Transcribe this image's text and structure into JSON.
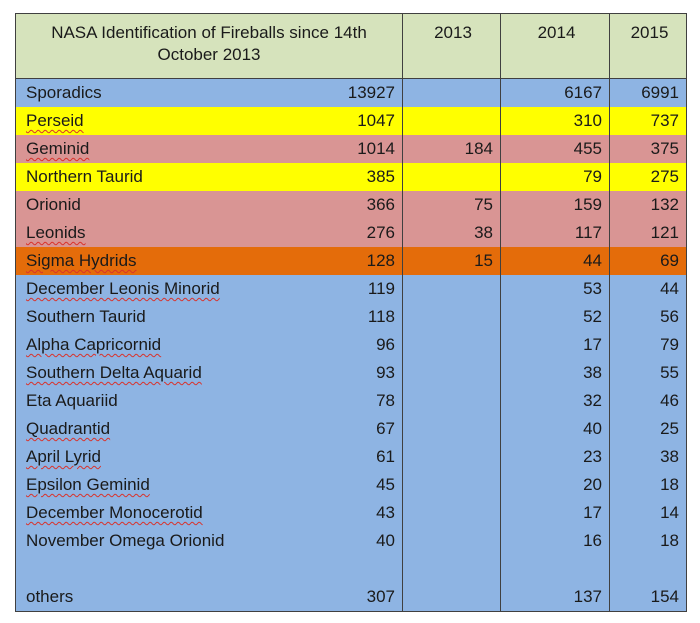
{
  "table": {
    "title": "NASA Identification of Fireballs since 14th October 2013",
    "years": [
      "2013",
      "2014",
      "2015"
    ],
    "rows": [
      {
        "name": "Sporadics",
        "total": "13927",
        "y2013": "",
        "y2014": "6167",
        "y2015": "6991",
        "bg": "#8eb4e3",
        "squiggle": false
      },
      {
        "name": "Perseid",
        "total": "1047",
        "y2013": "",
        "y2014": "310",
        "y2015": "737",
        "bg": "#ffff00",
        "squiggle": true
      },
      {
        "name": "Geminid",
        "total": "1014",
        "y2013": "184",
        "y2014": "455",
        "y2015": "375",
        "bg": "#d99594",
        "squiggle": true
      },
      {
        "name": "Northern Taurid",
        "total": "385",
        "y2013": "",
        "y2014": "79",
        "y2015": "275",
        "bg": "#ffff00",
        "squiggle": false
      },
      {
        "name": "Orionid",
        "total": "366",
        "y2013": "75",
        "y2014": "159",
        "y2015": "132",
        "bg": "#d99594",
        "squiggle": false
      },
      {
        "name": "Leonids",
        "total": "276",
        "y2013": "38",
        "y2014": "117",
        "y2015": "121",
        "bg": "#d99594",
        "squiggle": true
      },
      {
        "name": "Sigma Hydrids",
        "total": "128",
        "y2013": "15",
        "y2014": "44",
        "y2015": "69",
        "bg": "#e46c0a",
        "squiggle": true
      },
      {
        "name": "December Leonis Minorid",
        "total": "119",
        "y2013": "",
        "y2014": "53",
        "y2015": "44",
        "bg": "#8eb4e3",
        "squiggle": true
      },
      {
        "name": "Southern Taurid",
        "total": "118",
        "y2013": "",
        "y2014": "52",
        "y2015": "56",
        "bg": "#8eb4e3",
        "squiggle": false
      },
      {
        "name": "Alpha Capricornid",
        "total": "96",
        "y2013": "",
        "y2014": "17",
        "y2015": "79",
        "bg": "#8eb4e3",
        "squiggle": true
      },
      {
        "name": "Southern Delta Aquarid",
        "total": "93",
        "y2013": "",
        "y2014": "38",
        "y2015": "55",
        "bg": "#8eb4e3",
        "squiggle": true
      },
      {
        "name": "Eta Aquariid",
        "total": "78",
        "y2013": "",
        "y2014": "32",
        "y2015": "46",
        "bg": "#8eb4e3",
        "squiggle": false
      },
      {
        "name": "Quadrantid",
        "total": "67",
        "y2013": "",
        "y2014": "40",
        "y2015": "25",
        "bg": "#8eb4e3",
        "squiggle": true
      },
      {
        "name": "April Lyrid",
        "total": "61",
        "y2013": "",
        "y2014": "23",
        "y2015": "38",
        "bg": "#8eb4e3",
        "squiggle": true
      },
      {
        "name": "Epsilon Geminid",
        "total": "45",
        "y2013": "",
        "y2014": "20",
        "y2015": "18",
        "bg": "#8eb4e3",
        "squiggle": true
      },
      {
        "name": "December Monocerotid",
        "total": "43",
        "y2013": "",
        "y2014": "17",
        "y2015": "14",
        "bg": "#8eb4e3",
        "squiggle": true
      },
      {
        "name": "November Omega Orionid",
        "total": "40",
        "y2013": "",
        "y2014": "16",
        "y2015": "18",
        "bg": "#8eb4e3",
        "squiggle": false
      },
      {
        "name": "",
        "total": "",
        "y2013": "",
        "y2014": "",
        "y2015": "",
        "bg": "#8eb4e3",
        "squiggle": false
      },
      {
        "name": "others",
        "total": "307",
        "y2013": "",
        "y2014": "137",
        "y2015": "154",
        "bg": "#8eb4e3",
        "squiggle": false
      }
    ],
    "colors": {
      "header_bg": "#d6e3bc",
      "sporadic_blue": "#8eb4e3",
      "yellow": "#ffff00",
      "pink": "#d99594",
      "orange": "#e46c0a",
      "border": "#404040"
    }
  }
}
